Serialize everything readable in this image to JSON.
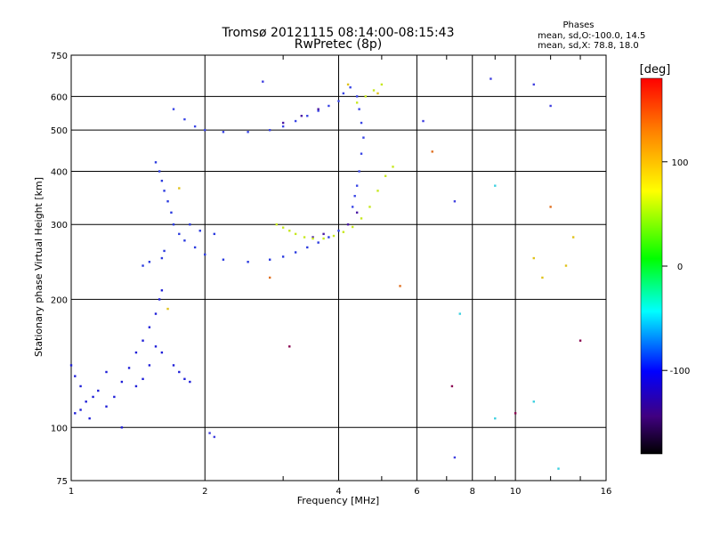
{
  "chart_data": {
    "type": "scatter",
    "title": "Tromsø 20121115 08:14:00-08:15:43",
    "subtitle": "RwPretec (8p)",
    "xlabel": "Frequency [MHz]",
    "ylabel": "Stationary phase Virtual Height [km]",
    "x_scale": "log",
    "y_scale": "log",
    "xlim": [
      1,
      16
    ],
    "ylim": [
      75,
      750
    ],
    "x_ticks": [
      1,
      2,
      4,
      6,
      8,
      10,
      16
    ],
    "y_ticks": [
      75,
      100,
      200,
      300,
      400,
      500,
      600,
      750
    ],
    "grid": true,
    "legend_position": "top-right",
    "legend": {
      "title": "Phases",
      "line1": "mean, sd,O:-100.0, 14.5",
      "line2": "mean, sd,X:  78.8, 18.0"
    },
    "colorbar": {
      "label": "[deg]",
      "min": -180,
      "max": 180,
      "ticks": [
        100,
        0,
        -100
      ],
      "stops": [
        "#ff0000",
        "#ff8000",
        "#ffff00",
        "#00ff00",
        "#00ffff",
        "#0000ff",
        "#400080",
        "#000000"
      ]
    },
    "series": [
      {
        "color": "#1f1fd8",
        "points": [
          [
            1.02,
            108
          ],
          [
            1.05,
            110
          ],
          [
            1.08,
            115
          ],
          [
            1.12,
            118
          ],
          [
            1.15,
            122
          ],
          [
            1.2,
            112
          ],
          [
            1.25,
            118
          ],
          [
            1.3,
            128
          ],
          [
            1.35,
            138
          ],
          [
            1.4,
            150
          ],
          [
            1.45,
            160
          ],
          [
            1.5,
            172
          ],
          [
            1.55,
            185
          ],
          [
            1.58,
            200
          ],
          [
            1.6,
            210
          ],
          [
            1.55,
            155
          ],
          [
            1.5,
            140
          ],
          [
            1.45,
            130
          ],
          [
            1.4,
            125
          ],
          [
            1.6,
            150
          ],
          [
            1.7,
            140
          ],
          [
            1.75,
            135
          ],
          [
            1.8,
            130
          ],
          [
            1.85,
            128
          ],
          [
            1.0,
            140
          ],
          [
            1.02,
            132
          ],
          [
            1.05,
            125
          ],
          [
            1.1,
            105
          ],
          [
            1.3,
            100
          ],
          [
            1.2,
            135
          ]
        ]
      },
      {
        "color": "#2a3adf",
        "points": [
          [
            1.55,
            420
          ],
          [
            1.58,
            400
          ],
          [
            1.6,
            380
          ],
          [
            1.62,
            360
          ],
          [
            1.65,
            340
          ],
          [
            1.68,
            320
          ],
          [
            1.7,
            300
          ],
          [
            1.75,
            285
          ],
          [
            1.8,
            275
          ],
          [
            1.9,
            265
          ],
          [
            2.0,
            255
          ],
          [
            2.2,
            248
          ],
          [
            2.5,
            245
          ],
          [
            2.8,
            248
          ],
          [
            3.0,
            252
          ],
          [
            3.2,
            258
          ],
          [
            3.4,
            265
          ],
          [
            3.6,
            272
          ],
          [
            3.8,
            280
          ],
          [
            4.0,
            290
          ],
          [
            1.85,
            300
          ],
          [
            1.95,
            290
          ],
          [
            2.1,
            285
          ],
          [
            1.6,
            250
          ],
          [
            1.45,
            240
          ],
          [
            1.5,
            245
          ],
          [
            1.62,
            260
          ]
        ]
      },
      {
        "color": "#3a46e6",
        "points": [
          [
            1.7,
            560
          ],
          [
            1.8,
            530
          ],
          [
            1.9,
            510
          ],
          [
            2.0,
            500
          ],
          [
            2.2,
            495
          ],
          [
            2.5,
            495
          ],
          [
            2.8,
            500
          ],
          [
            3.0,
            510
          ],
          [
            3.2,
            525
          ],
          [
            3.4,
            540
          ],
          [
            3.6,
            555
          ],
          [
            3.8,
            570
          ],
          [
            4.0,
            585
          ],
          [
            4.1,
            610
          ],
          [
            4.25,
            630
          ],
          [
            4.4,
            600
          ],
          [
            4.45,
            560
          ],
          [
            4.5,
            520
          ],
          [
            4.55,
            480
          ],
          [
            4.5,
            440
          ],
          [
            4.45,
            400
          ],
          [
            4.4,
            370
          ],
          [
            4.35,
            350
          ],
          [
            4.3,
            330
          ]
        ]
      },
      {
        "color": "#4b1aa5",
        "points": [
          [
            3.0,
            520
          ],
          [
            3.3,
            540
          ],
          [
            3.6,
            560
          ],
          [
            3.5,
            280
          ],
          [
            3.7,
            285
          ],
          [
            4.2,
            300
          ],
          [
            4.4,
            320
          ]
        ]
      },
      {
        "color": "#c7e81f",
        "points": [
          [
            2.9,
            300
          ],
          [
            3.0,
            295
          ],
          [
            3.1,
            290
          ],
          [
            3.2,
            285
          ],
          [
            3.35,
            280
          ],
          [
            3.5,
            278
          ],
          [
            3.7,
            278
          ],
          [
            3.9,
            282
          ],
          [
            4.1,
            288
          ],
          [
            4.3,
            296
          ],
          [
            4.5,
            310
          ],
          [
            4.7,
            330
          ],
          [
            4.9,
            360
          ],
          [
            5.1,
            390
          ],
          [
            5.3,
            410
          ],
          [
            4.6,
            600
          ],
          [
            4.8,
            620
          ],
          [
            5.0,
            640
          ],
          [
            4.4,
            580
          ]
        ]
      },
      {
        "color": "#e0c21a",
        "points": [
          [
            1.65,
            190
          ],
          [
            1.75,
            365
          ],
          [
            4.2,
            640
          ],
          [
            4.9,
            610
          ],
          [
            11.0,
            250
          ],
          [
            11.5,
            225
          ],
          [
            13.0,
            240
          ],
          [
            13.5,
            280
          ]
        ]
      },
      {
        "color": "#e07020",
        "points": [
          [
            2.8,
            225
          ],
          [
            5.5,
            215
          ],
          [
            6.5,
            445
          ],
          [
            12.0,
            330
          ]
        ]
      },
      {
        "color": "#3cd0e0",
        "points": [
          [
            7.5,
            185
          ],
          [
            9.0,
            370
          ],
          [
            9.0,
            105
          ],
          [
            12.5,
            80
          ],
          [
            11.0,
            115
          ]
        ]
      },
      {
        "color": "#4040e0",
        "points": [
          [
            2.1,
            95
          ],
          [
            2.05,
            97
          ],
          [
            2.7,
            650
          ],
          [
            6.2,
            525
          ],
          [
            7.3,
            85
          ],
          [
            8.8,
            660
          ],
          [
            11.0,
            640
          ],
          [
            12.0,
            570
          ],
          [
            7.3,
            340
          ]
        ]
      },
      {
        "color": "#8a0050",
        "points": [
          [
            3.1,
            155
          ],
          [
            7.2,
            125
          ],
          [
            10.0,
            108
          ],
          [
            14.0,
            160
          ]
        ]
      }
    ]
  }
}
